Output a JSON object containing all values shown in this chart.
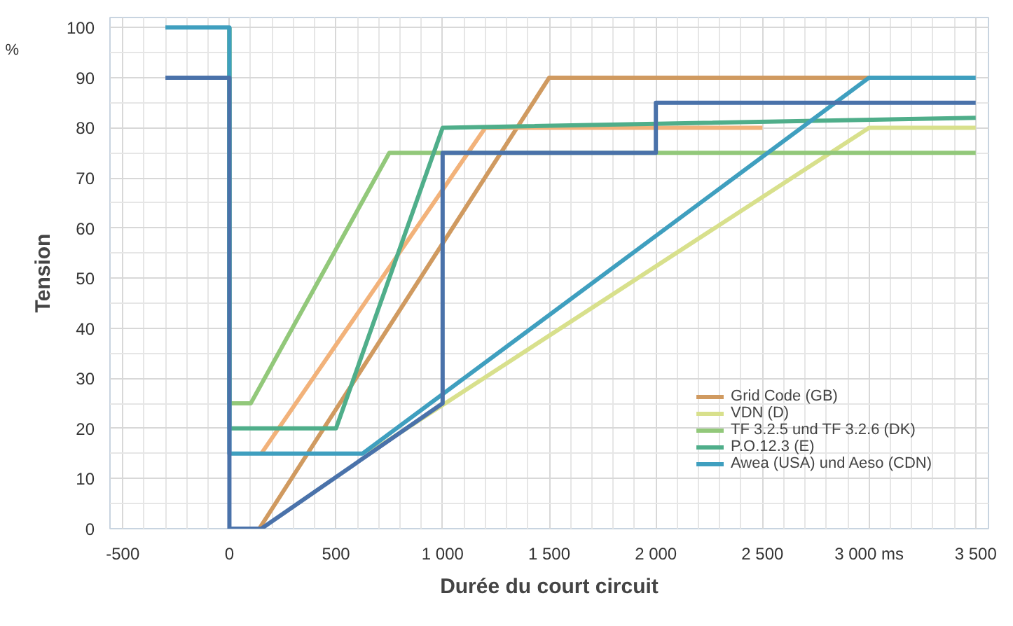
{
  "chart_data": {
    "type": "line",
    "xlabel": "Durée du court circuit",
    "ylabel": "Tension",
    "annotations": [
      "%"
    ],
    "xlim": [
      -560,
      3560
    ],
    "ylim": [
      0,
      102
    ],
    "xticks": [
      -500,
      0,
      500,
      {
        "value": 1000,
        "label": "1 000"
      },
      {
        "value": 1500,
        "label": "1 500"
      },
      {
        "value": 2000,
        "label": "2 000"
      },
      {
        "value": 2500,
        "label": "2 500"
      },
      {
        "value": 3000,
        "label": "3 000 ms"
      },
      {
        "value": 3500,
        "label": "3 500"
      }
    ],
    "yticks": [
      0,
      10,
      20,
      30,
      40,
      50,
      60,
      70,
      80,
      90,
      100
    ],
    "grid": true,
    "legend": "bottom right",
    "marker": "none",
    "line_style": "solid",
    "series": [
      {
        "name": "Grid Code (GB)",
        "color": "#d09a60",
        "x": [
          140,
          1500,
          3000
        ],
        "values": [
          0,
          90,
          90
        ]
      },
      {
        "color": "#f2b27a",
        "x": [
          150,
          1200,
          2500
        ],
        "values": [
          15,
          80,
          80
        ]
      },
      {
        "name": "VDN (D)",
        "color": "#d8e08c",
        "x": [
          650,
          3000,
          3500
        ],
        "values": [
          15,
          80,
          80
        ]
      },
      {
        "name": "TF 3.2.5 und TF 3.2.6 (DK)",
        "color": "#92c87a",
        "x": [
          0,
          0,
          100,
          750,
          3500
        ],
        "values": [
          100,
          25,
          25,
          75,
          75
        ]
      },
      {
        "name": "P.O.12.3 (E)",
        "color": "#4fae8a",
        "x": [
          0,
          0,
          500,
          1000,
          3500
        ],
        "values": [
          100,
          20,
          20,
          80,
          82
        ]
      },
      {
        "name": "Awea (USA) und Aeso (CDN)",
        "color": "#3f9fbf",
        "x": [
          -300,
          0,
          0,
          625,
          3000,
          3500
        ],
        "values": [
          100,
          100,
          15,
          15,
          90,
          90
        ]
      },
      {
        "color": "#4a72aa",
        "x": [
          -300,
          0,
          0,
          150,
          1000,
          1000,
          2000,
          2000,
          3500
        ],
        "values": [
          90,
          90,
          0,
          0,
          25,
          75,
          75,
          85,
          85
        ]
      }
    ]
  }
}
